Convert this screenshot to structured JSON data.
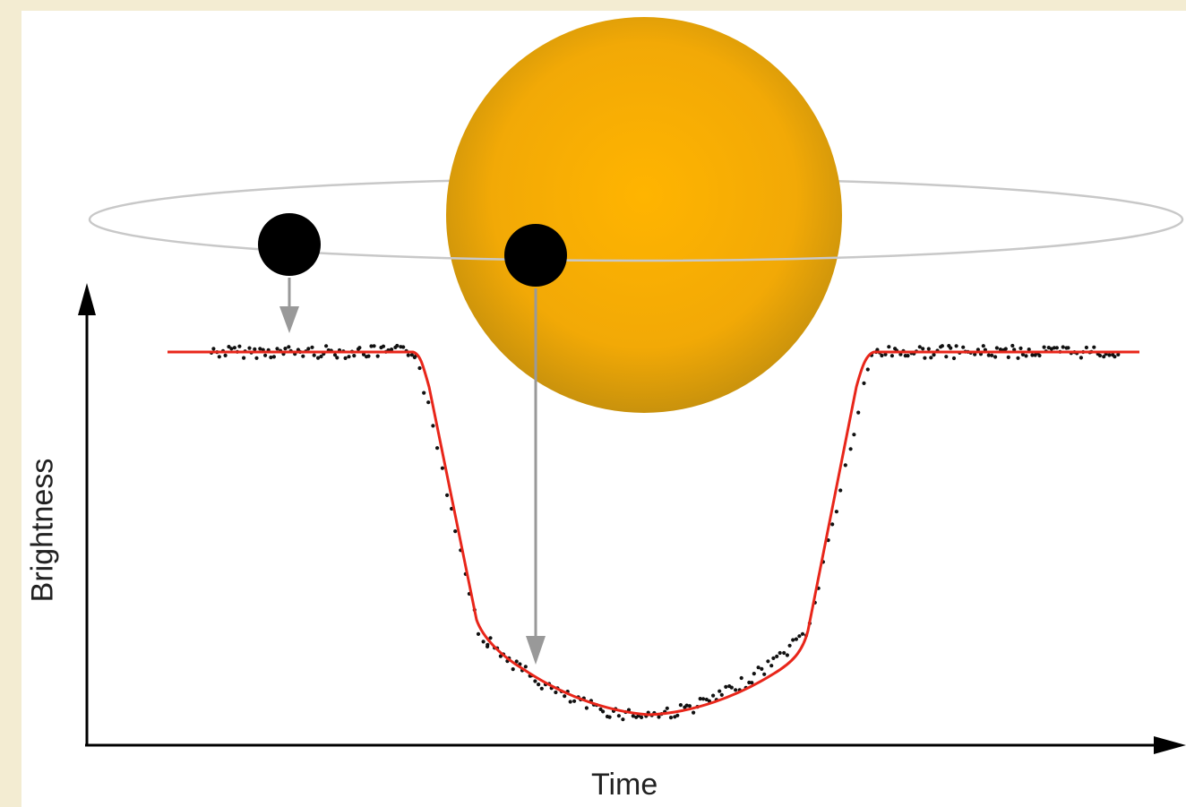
{
  "diagram": {
    "x_axis_label": "Time",
    "y_axis_label": "Brightness",
    "colors": {
      "background": "#f3ecd2",
      "star_core": "#ffb400",
      "star_edge": "#c9920c",
      "orbit": "#c8c8c8",
      "planet": "#000000",
      "arrow": "#999999",
      "fit_curve": "#e8261a",
      "data_points": "#111111"
    }
  }
}
